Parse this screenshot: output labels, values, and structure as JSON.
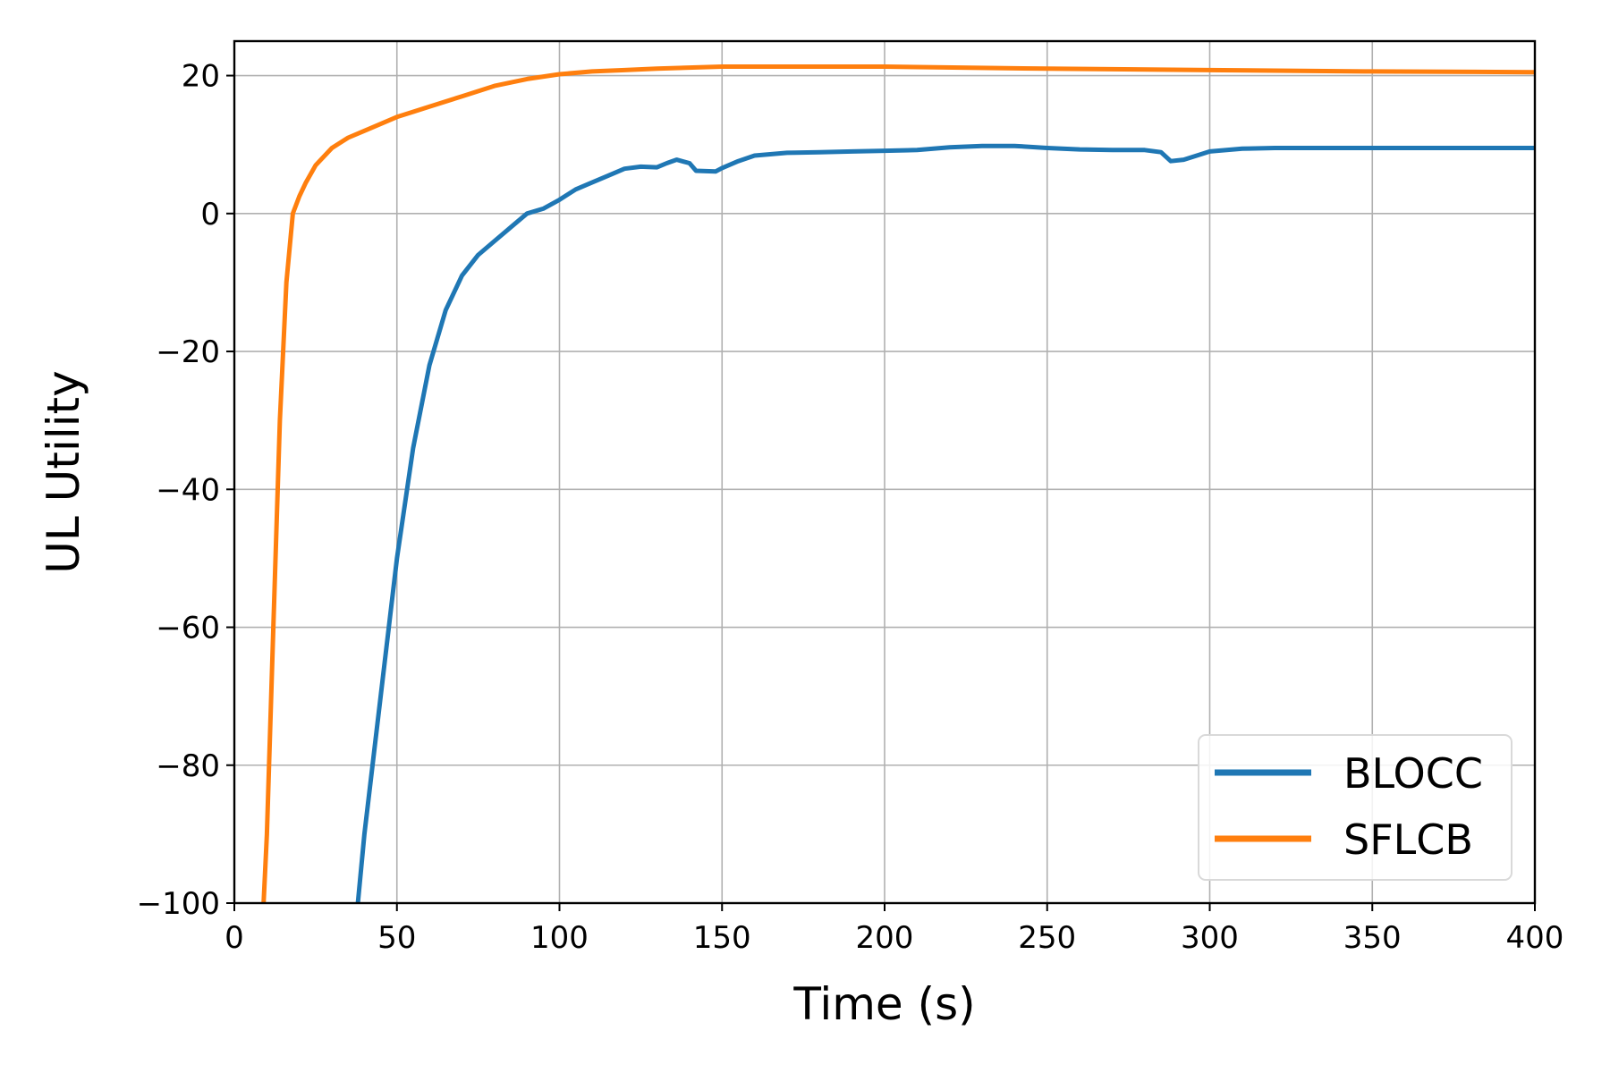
{
  "chart_data": {
    "type": "line",
    "title": "",
    "xlabel": "Time (s)",
    "ylabel": "UL Utility",
    "xlim": [
      0,
      400
    ],
    "ylim": [
      -100,
      25
    ],
    "xticks": [
      0,
      50,
      100,
      150,
      200,
      250,
      300,
      350,
      400
    ],
    "yticks": [
      -100,
      -80,
      -60,
      -40,
      -20,
      0,
      20
    ],
    "xtick_labels": [
      "0",
      "50",
      "100",
      "150",
      "200",
      "250",
      "300",
      "350",
      "400"
    ],
    "ytick_labels": [
      "−100",
      "−80",
      "−60",
      "−40",
      "−20",
      "0",
      "20"
    ],
    "grid": true,
    "legend_position": "lower-right",
    "series": [
      {
        "name": "BLOCC",
        "color": "#1f77b4",
        "x": [
          38,
          40,
          45,
          50,
          55,
          60,
          65,
          70,
          75,
          80,
          85,
          90,
          95,
          100,
          105,
          110,
          115,
          120,
          125,
          130,
          133,
          136,
          140,
          142,
          148,
          150,
          155,
          160,
          170,
          180,
          190,
          200,
          210,
          220,
          230,
          240,
          250,
          260,
          270,
          280,
          285,
          288,
          292,
          296,
          300,
          310,
          320,
          340,
          360,
          380,
          400
        ],
        "y": [
          -100,
          -90,
          -70,
          -50,
          -34,
          -22,
          -14,
          -9,
          -6,
          -4,
          -2,
          0,
          0.7,
          2,
          3.5,
          4.5,
          5.5,
          6.5,
          6.8,
          6.7,
          7.3,
          7.8,
          7.3,
          6.2,
          6.1,
          6.6,
          7.6,
          8.4,
          8.8,
          8.9,
          9,
          9.1,
          9.2,
          9.6,
          9.8,
          9.8,
          9.5,
          9.3,
          9.2,
          9.2,
          8.9,
          7.6,
          7.8,
          8.4,
          9,
          9.4,
          9.5,
          9.5,
          9.5,
          9.5,
          9.5
        ]
      },
      {
        "name": "SFLCB",
        "color": "#ff7f0e",
        "x": [
          9,
          10,
          12,
          14,
          16,
          18,
          20,
          22,
          25,
          30,
          35,
          40,
          50,
          60,
          70,
          80,
          90,
          100,
          110,
          120,
          130,
          150,
          200,
          250,
          300,
          350,
          400
        ],
        "y": [
          -100,
          -90,
          -60,
          -30,
          -10,
          0,
          2.5,
          4.5,
          7,
          9.5,
          11,
          12,
          14,
          15.5,
          17,
          18.5,
          19.5,
          20.2,
          20.6,
          20.8,
          21,
          21.3,
          21.3,
          21,
          20.8,
          20.6,
          20.5
        ]
      }
    ]
  }
}
